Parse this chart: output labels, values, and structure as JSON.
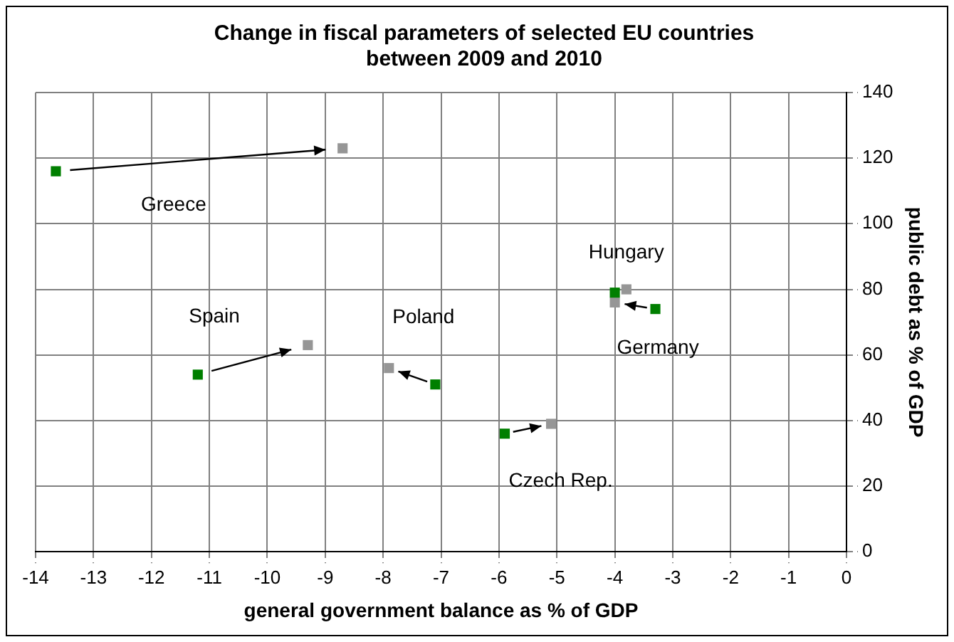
{
  "chart_data": {
    "type": "scatter",
    "title": "Change in fiscal parameters of selected EU countries between 2009 and 2010",
    "xlabel": "general government balance as % of GDP",
    "ylabel": "public debt as % of GDP",
    "series": [
      {
        "color": "#007f00",
        "x": [
          -13.65,
          -11.2,
          -7.1,
          -5.9,
          -4.0,
          -3.3
        ],
        "values": [
          116,
          54,
          51,
          36,
          79,
          74
        ]
      },
      {
        "color": "#969696",
        "x": [
          -8.7,
          -9.3,
          -7.9,
          -5.1,
          -3.8,
          -4.0
        ],
        "values": [
          123,
          63,
          56,
          39,
          80,
          76
        ]
      }
    ],
    "annotations": [
      "Greece",
      "Spain",
      "Poland",
      "Czech Rep.",
      "Hungary",
      "Germany"
    ],
    "xlim": [
      -14,
      0
    ],
    "xticks": [
      -14,
      -13,
      -12,
      -11,
      -10,
      -9,
      -8,
      -7,
      -6,
      -5,
      -4,
      -3,
      -2,
      -1,
      0
    ],
    "ylim": [
      0,
      140
    ],
    "yticks": [
      0,
      20,
      40,
      60,
      80,
      100,
      120,
      140
    ],
    "grid": true,
    "legend": false,
    "marker": "square"
  }
}
